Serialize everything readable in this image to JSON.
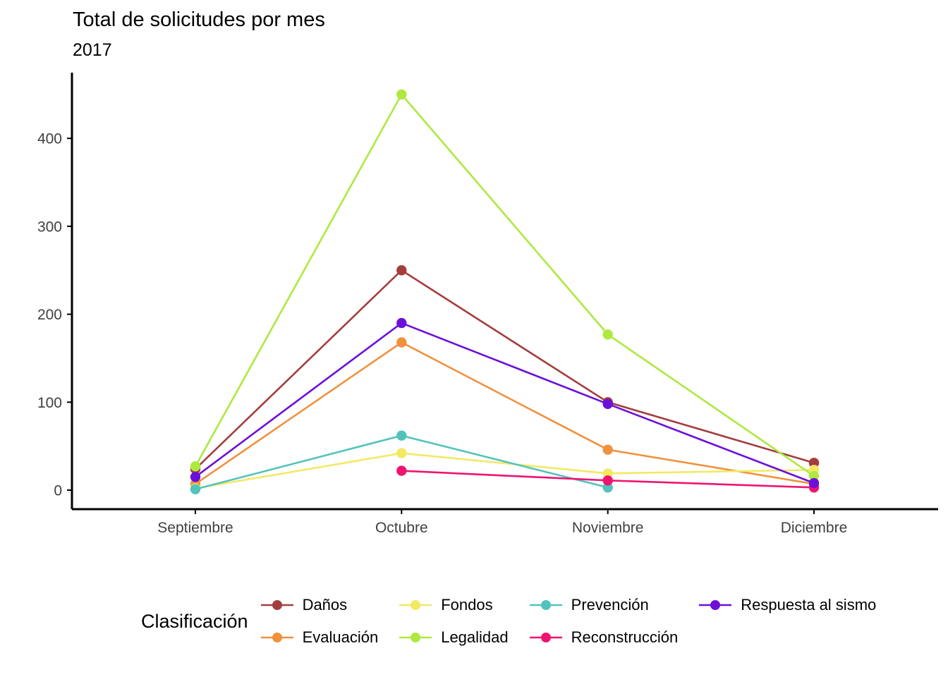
{
  "chart_data": {
    "type": "line",
    "title": "Total de solicitudes por mes",
    "subtitle": "2017",
    "categories": [
      "Septiembre",
      "Octubre",
      "Noviembre",
      "Diciembre"
    ],
    "series": [
      {
        "name": "Daños",
        "color": "#A33E3E",
        "values": [
          24,
          250,
          100,
          31
        ]
      },
      {
        "name": "Evaluación",
        "color": "#F0913E",
        "values": [
          7,
          168,
          46,
          7
        ]
      },
      {
        "name": "Fondos",
        "color": "#F2E964",
        "values": [
          2,
          42,
          19,
          23
        ]
      },
      {
        "name": "Legalidad",
        "color": "#ADE93F",
        "values": [
          27,
          450,
          177,
          16
        ]
      },
      {
        "name": "Prevención",
        "color": "#52C3BC",
        "values": [
          1,
          62,
          3,
          null
        ]
      },
      {
        "name": "Reconstrucción",
        "color": "#EF1470",
        "values": [
          null,
          22,
          11,
          3
        ]
      },
      {
        "name": "Respuesta al sismo",
        "color": "#6C10D9",
        "values": [
          15,
          190,
          98,
          8
        ]
      }
    ],
    "ylim": [
      0,
      460
    ],
    "yticks": [
      0,
      100,
      200,
      300,
      400
    ],
    "grid": false,
    "legend_title": "Clasificación",
    "legend_position": "bottom",
    "axis_color": "#000000",
    "tick_label_color": "#404040"
  }
}
